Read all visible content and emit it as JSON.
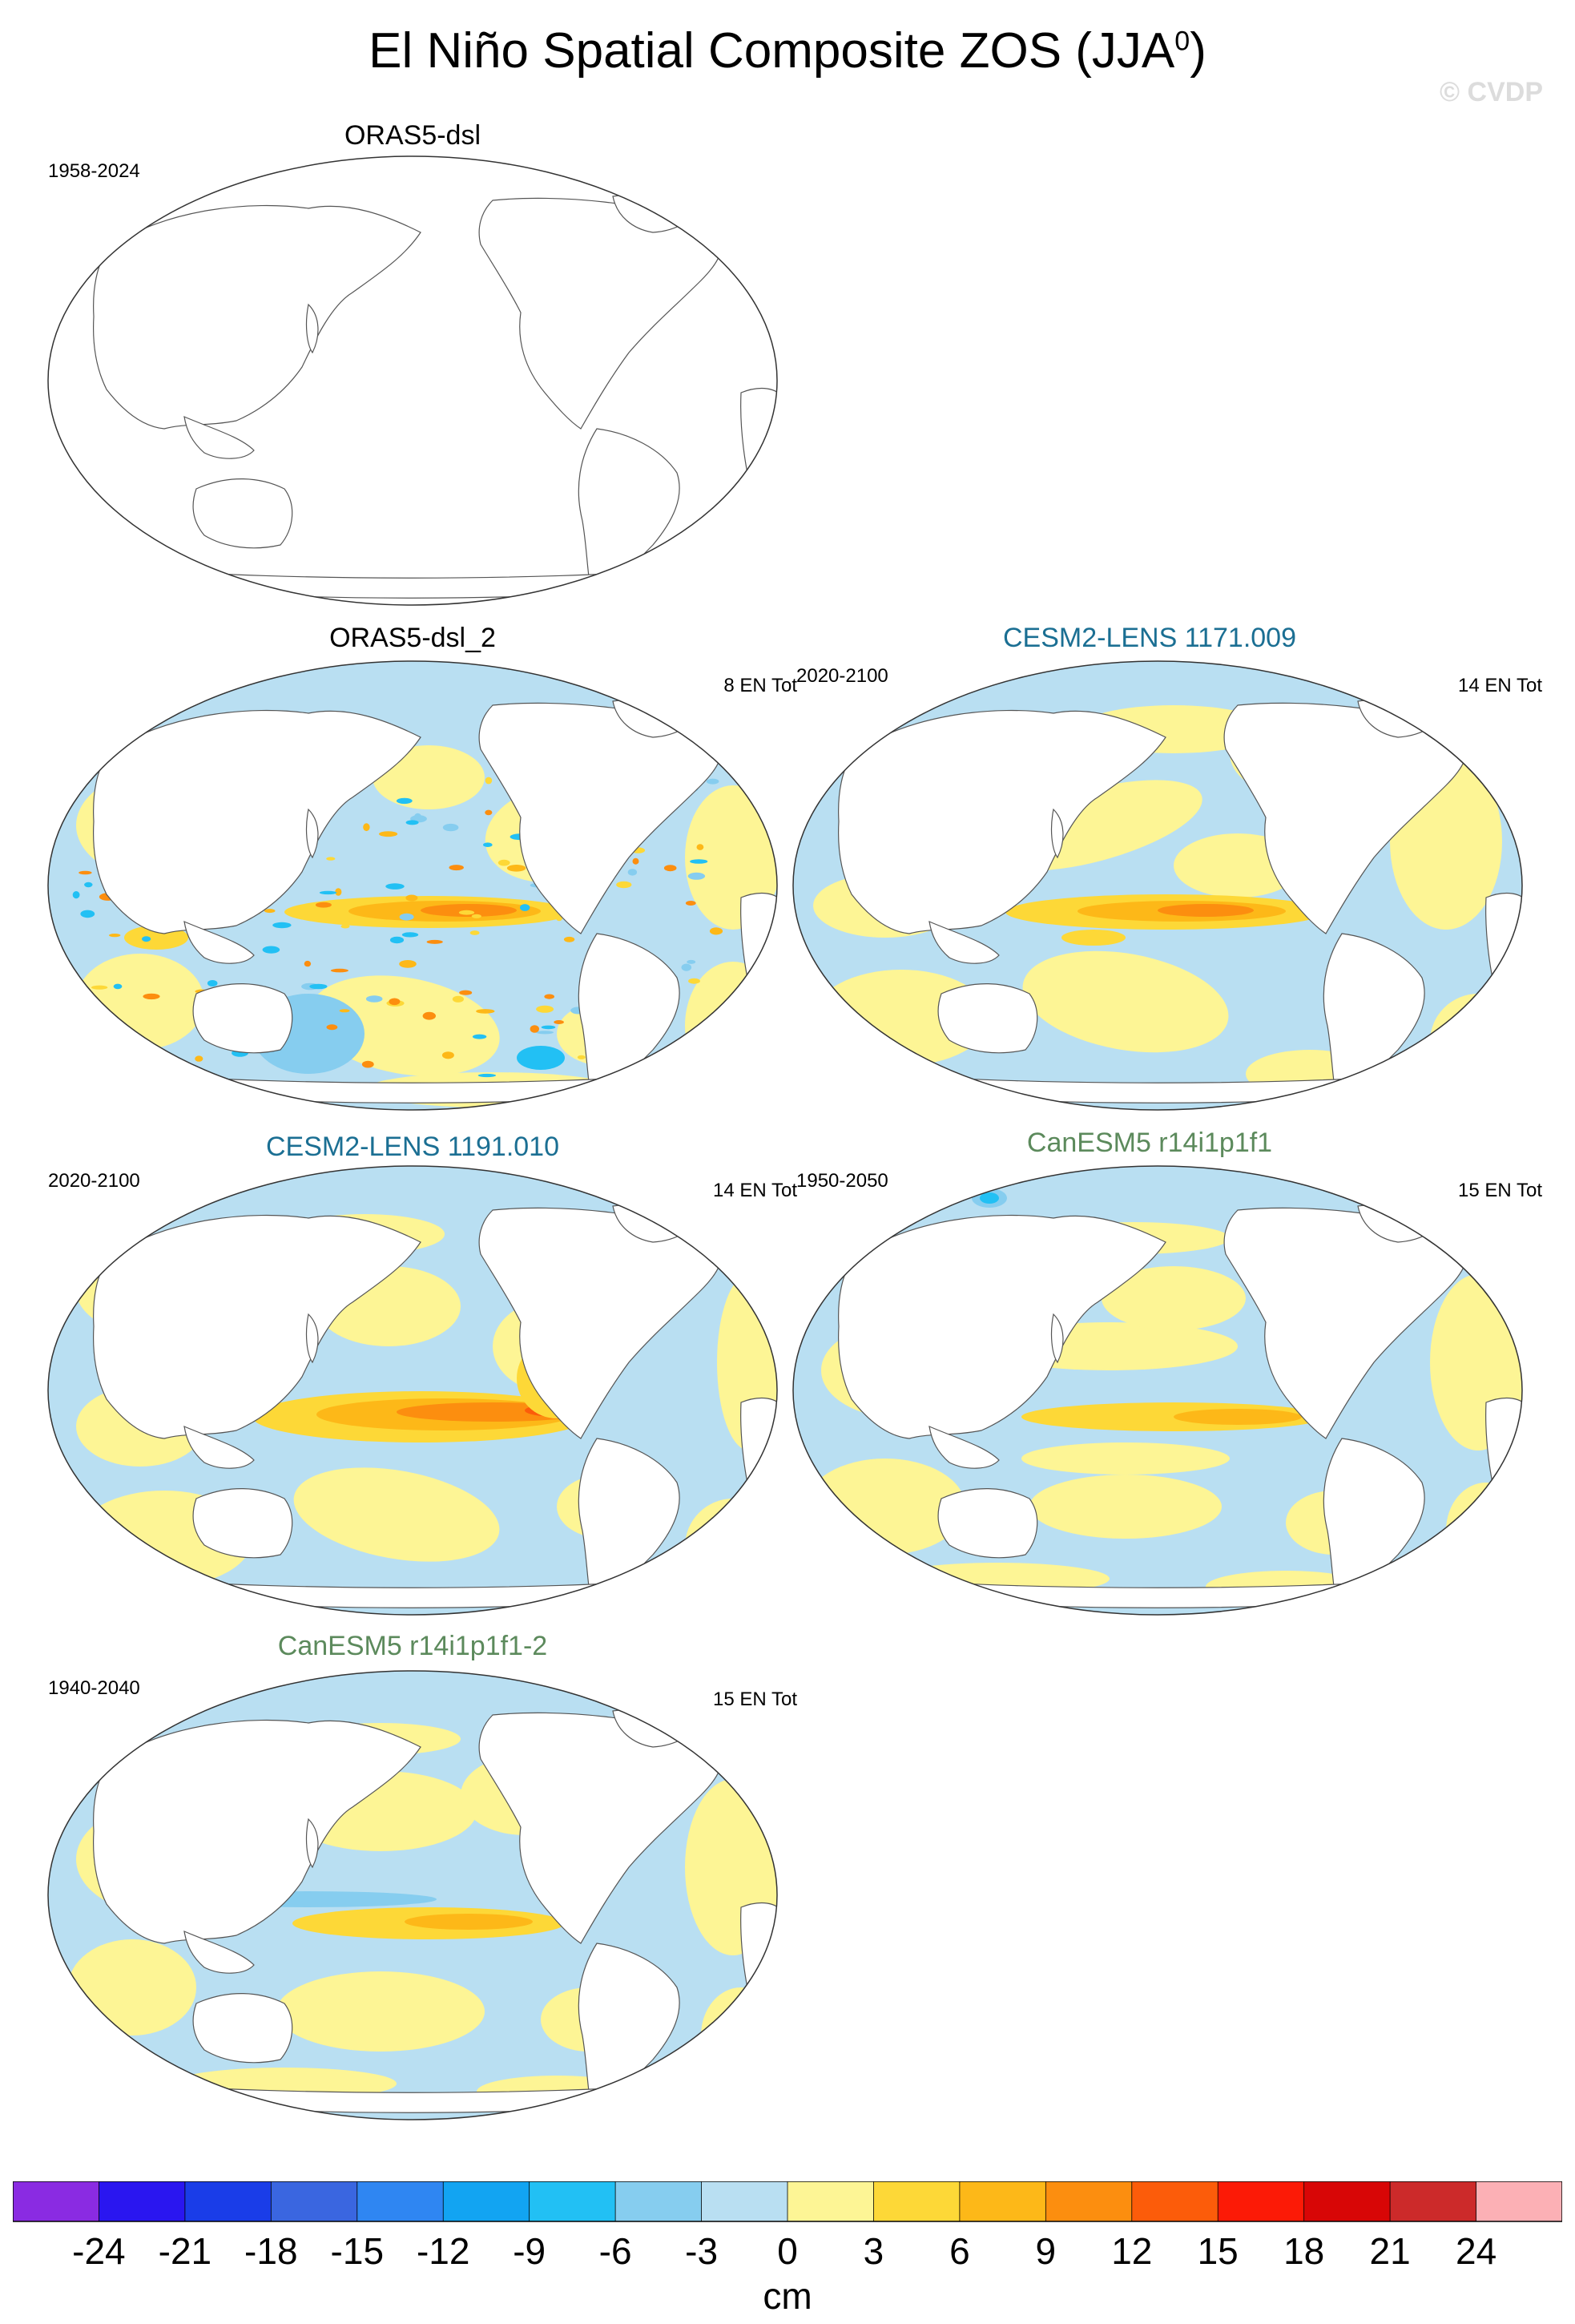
{
  "figure": {
    "title": "El Niño Spatial Composite ZOS (JJA",
    "title_superscript": "0",
    "title_close": ")",
    "watermark": "© CVDP"
  },
  "panels": [
    {
      "title": "ORAS5-dsl",
      "title_color": "#000000",
      "period": "1958-2024",
      "count": "",
      "style": "empty"
    },
    {
      "title": "ORAS5-dsl_2",
      "title_color": "#000000",
      "period": "",
      "count": "8 EN Tot",
      "style": "noisy"
    },
    {
      "title": "CESM2-LENS 1171.009",
      "title_color": "#1b6f93",
      "period": "2020-2100",
      "count": "14 EN Tot",
      "style": "cesm_a"
    },
    {
      "title": "CESM2-LENS 1191.010",
      "title_color": "#1b6f93",
      "period": "2020-2100",
      "count": "14 EN Tot",
      "style": "cesm_b"
    },
    {
      "title": "CanESM5 r14i1p1f1",
      "title_color": "#5c8a5c",
      "period": "1950-2050",
      "count": "15 EN Tot",
      "style": "canesm_a"
    },
    {
      "title": "CanESM5 r14i1p1f1-2",
      "title_color": "#5c8a5c",
      "period": "1940-2040",
      "count": "15 EN Tot",
      "style": "canesm_b"
    }
  ],
  "colorbar": {
    "units": "cm",
    "labels": [
      "-24",
      "-21",
      "-18",
      "-15",
      "-12",
      "-9",
      "-6",
      "-3",
      "0",
      "3",
      "6",
      "9",
      "12",
      "15",
      "18",
      "21",
      "24"
    ],
    "colors": [
      "#8a2be2",
      "#2a16f0",
      "#1a3de8",
      "#3a66e0",
      "#2f86f2",
      "#12a4f2",
      "#22c0f4",
      "#86cdef",
      "#b9dff2",
      "#fdf595",
      "#fdd837",
      "#fdb818",
      "#fc8e0f",
      "#fc5c0a",
      "#fc1a06",
      "#d80606",
      "#cc2a2a",
      "#fcb0b5"
    ]
  }
}
